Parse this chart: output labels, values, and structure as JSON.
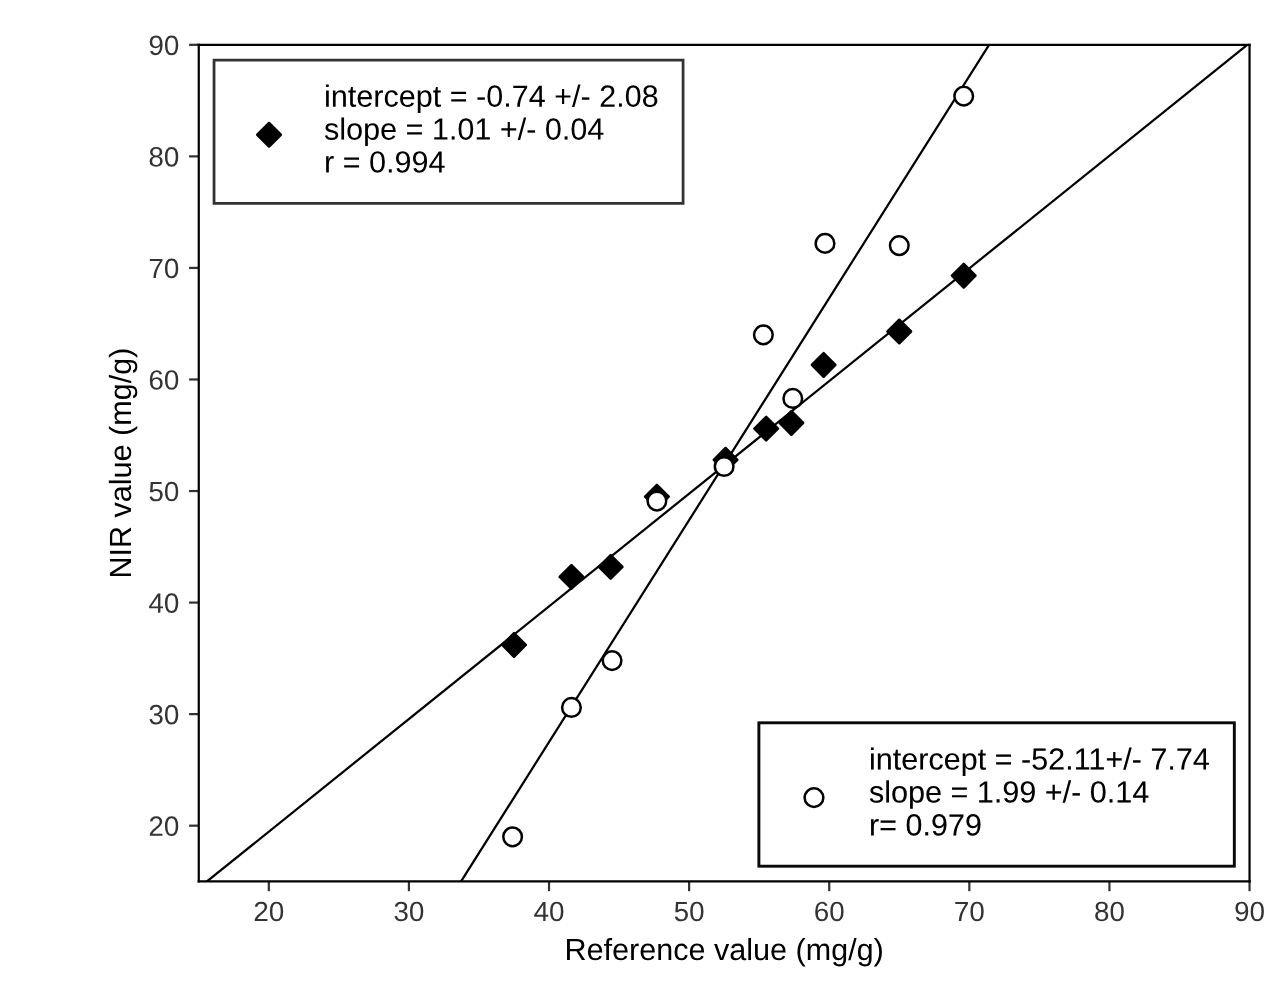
{
  "chart_data": {
    "type": "scatter",
    "xlabel": "Reference value (mg/g)",
    "ylabel": "NIR value (mg/g)",
    "xlim": [
      15,
      90
    ],
    "ylim": [
      15,
      90
    ],
    "xticks": [
      20,
      30,
      40,
      50,
      60,
      70,
      80,
      90
    ],
    "yticks": [
      20,
      30,
      40,
      50,
      60,
      70,
      80,
      90
    ],
    "grid": false,
    "legend": [
      "top left",
      "bottom right"
    ],
    "series": [
      {
        "name": "intercept = -0.74 +/- 2.08\nslope = 1.01 +/- 0.04\nr = 0.994",
        "color": "#000000",
        "marker": "diamond",
        "x": [
          37.5,
          41.6,
          44.4,
          47.7,
          52.6,
          55.5,
          57.3,
          59.6,
          65.0,
          69.6
        ],
        "values": [
          36.2,
          42.3,
          43.2,
          49.5,
          52.8,
          55.6,
          56.1,
          61.3,
          64.3,
          69.3
        ]
      },
      {
        "name": "intercept = -52.11+/- 7.74\nslope = 1.99 +/- 0.14\nr= 0.979",
        "color": "#000000",
        "marker": "circle",
        "x": [
          37.4,
          41.6,
          44.5,
          47.7,
          52.5,
          55.3,
          57.4,
          59.7,
          65.0,
          69.6
        ],
        "values": [
          19.0,
          30.6,
          34.8,
          49.1,
          52.2,
          64.0,
          58.3,
          72.2,
          72.0,
          85.4
        ]
      },
      {
        "type": "line",
        "color": "#000000",
        "x": [
          15.58,
          89.84
        ],
        "values": [
          15,
          90
        ]
      },
      {
        "type": "line",
        "color": "#000000",
        "x": [
          33.72,
          71.41
        ],
        "values": [
          15,
          90
        ]
      }
    ]
  }
}
